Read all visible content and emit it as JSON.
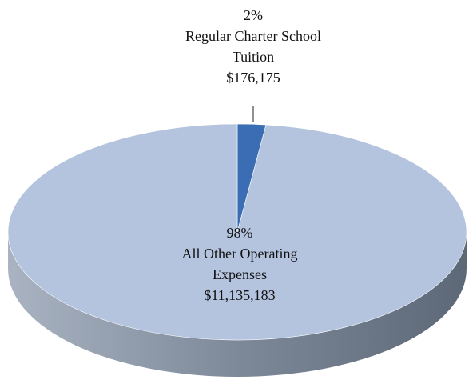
{
  "chart_data": {
    "type": "pie",
    "categories": [
      "Regular Charter School Tuition",
      "All Other Operating Expenses"
    ],
    "values": [
      2,
      98
    ],
    "value_labels": [
      "2%",
      "98%"
    ],
    "amounts": [
      176175,
      11135183
    ],
    "amount_labels": [
      "$176,175",
      "$11,135,183"
    ],
    "colors": [
      "#3a6db3",
      "#b4c4de"
    ]
  }
}
